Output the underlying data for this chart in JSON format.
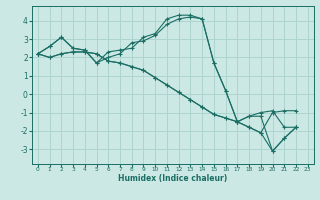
{
  "xlabel": "Humidex (Indice chaleur)",
  "ylabel": "",
  "bg_color": "#cce8e4",
  "grid_color": "#aed4cf",
  "line_color": "#1a6e64",
  "xlim": [
    -0.5,
    23.5
  ],
  "ylim": [
    -3.8,
    4.8
  ],
  "xticks": [
    0,
    1,
    2,
    3,
    4,
    5,
    6,
    7,
    8,
    9,
    10,
    11,
    12,
    13,
    14,
    15,
    16,
    17,
    18,
    19,
    20,
    21,
    22,
    23
  ],
  "yticks": [
    -3,
    -2,
    -1,
    0,
    1,
    2,
    3,
    4
  ],
  "series": [
    [
      2.2,
      2.6,
      3.1,
      2.5,
      2.4,
      1.7,
      2.3,
      2.4,
      2.5,
      3.1,
      3.3,
      4.1,
      4.3,
      4.3,
      4.1,
      1.7,
      0.2,
      -1.5,
      -1.2,
      -1.2,
      -3.1,
      -2.4,
      -1.8
    ],
    [
      2.2,
      2.6,
      3.1,
      2.5,
      2.4,
      1.7,
      2.0,
      2.2,
      2.8,
      2.9,
      3.2,
      3.8,
      4.1,
      4.2,
      4.1,
      1.7,
      0.2,
      -1.5,
      -1.2,
      -1.0,
      -0.9,
      -1.8,
      -1.8
    ],
    [
      2.2,
      2.0,
      2.2,
      2.3,
      2.3,
      2.2,
      1.8,
      1.7,
      1.5,
      1.3,
      0.9,
      0.5,
      0.1,
      -0.3,
      -0.7,
      -1.1,
      -1.3,
      -1.5,
      -1.8,
      -2.1,
      -3.1,
      -2.4,
      -1.8
    ],
    [
      2.2,
      2.0,
      2.2,
      2.3,
      2.3,
      2.2,
      1.8,
      1.7,
      1.5,
      1.3,
      0.9,
      0.5,
      0.1,
      -0.3,
      -0.7,
      -1.1,
      -1.3,
      -1.5,
      -1.8,
      -2.1,
      -1.0,
      -0.9,
      -0.9
    ]
  ]
}
